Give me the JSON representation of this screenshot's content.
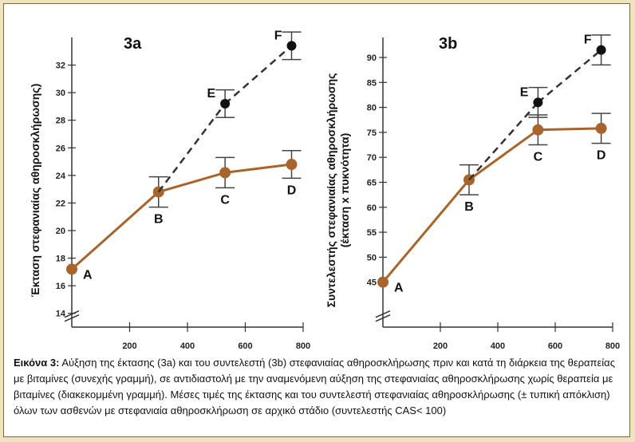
{
  "colors": {
    "treated": "#a8642a",
    "expected": "#333333",
    "dot_dark": "#111111"
  },
  "chart_data": [
    {
      "type": "line",
      "title": "3a",
      "ylabel": "Έκταση στεφανιαίας αθηροσκλήρωσης)",
      "xlim": [
        0,
        800
      ],
      "ylim": [
        13,
        34
      ],
      "y_axis_break": true,
      "x_ticks": [
        200,
        400,
        600,
        800
      ],
      "y_ticks": [
        14,
        16,
        18,
        20,
        22,
        24,
        26,
        28,
        30,
        32
      ],
      "series": [
        {
          "style": "solid",
          "points": [
            {
              "label": "A",
              "x": 0,
              "y": 17.2,
              "err": 0
            },
            {
              "label": "B",
              "x": 300,
              "y": 22.8,
              "err": 1.1
            },
            {
              "label": "C",
              "x": 530,
              "y": 24.2,
              "err": 1.1
            },
            {
              "label": "D",
              "x": 760,
              "y": 24.8,
              "err": 1.0
            }
          ]
        },
        {
          "style": "dashed",
          "points": [
            {
              "label": "B",
              "x": 300,
              "y": 22.8,
              "err": 0
            },
            {
              "label": "E",
              "x": 530,
              "y": 29.2,
              "err": 1.0
            },
            {
              "label": "F",
              "x": 760,
              "y": 33.4,
              "err": 1.0
            }
          ]
        }
      ]
    },
    {
      "type": "line",
      "title": "3b",
      "ylabel": "Συντελεστής στεφανιαίας αθηροσκλήρωσης",
      "ylabel2": "(έκταση x πυκνότητα)",
      "xlim": [
        0,
        800
      ],
      "ylim": [
        36,
        94
      ],
      "y_axis_break": true,
      "x_ticks": [
        200,
        400,
        600,
        800
      ],
      "y_ticks": [
        45,
        50,
        55,
        60,
        65,
        70,
        75,
        80,
        85,
        90
      ],
      "series": [
        {
          "style": "solid",
          "points": [
            {
              "label": "A",
              "x": 0,
              "y": 45,
              "err": 0
            },
            {
              "label": "B",
              "x": 300,
              "y": 65.5,
              "err": 3.0
            },
            {
              "label": "C",
              "x": 540,
              "y": 75.5,
              "err": 3.0
            },
            {
              "label": "D",
              "x": 760,
              "y": 75.8,
              "err": 3.0
            }
          ]
        },
        {
          "style": "dashed",
          "points": [
            {
              "label": "B",
              "x": 300,
              "y": 65.5,
              "err": 0
            },
            {
              "label": "E",
              "x": 540,
              "y": 81,
              "err": 3.0
            },
            {
              "label": "F",
              "x": 760,
              "y": 91.5,
              "err": 3.0
            }
          ]
        }
      ]
    }
  ],
  "caption": {
    "label": "Εικόνα 3:",
    "text": "Αύξηση της έκτασης (3a) και του συντελεστή (3b) στεφανιαίας αθηροσκλήρωσης πριν και κατά τη διάρκεια της θεραπείας με βιταμίνες (συνεχής γραμμή), σε αντιδιαστολή με την αναμενόμενη αύξηση της στεφανιαίας αθηροσκλήρωσης χωρίς θεραπεία με βιταμίνες (διακεκομμένη γραμμή). Μέσες τιμές της έκτασης και του συντελεστή στεφανιαίας αθηροσκλήρωσης (± τυπική απόκλιση) όλων των ασθενών με στεφανιαία αθηροσκλήρωση σε αρχικό στάδιο (συντελεστής CAS< 100)"
  }
}
